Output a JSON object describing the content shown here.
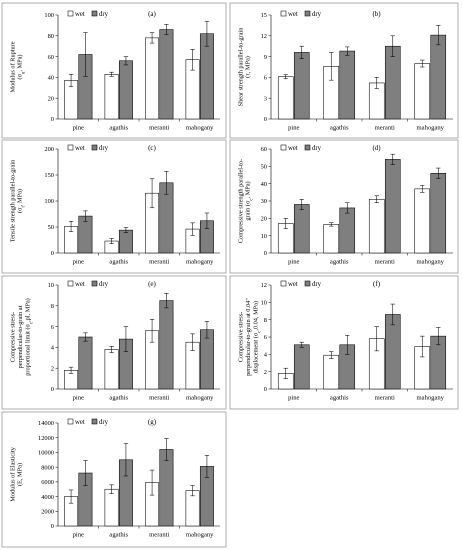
{
  "legend": {
    "wet": "wet",
    "dry": "dry"
  },
  "colors": {
    "wet": "#ffffff",
    "dry": "#7f7f7f",
    "edge": "#000000"
  },
  "chart_data": [
    {
      "panel": "(a)",
      "type": "bar",
      "ylabel_lines": [
        "Modulus of Rupture",
        "(σ_u, MPa)"
      ],
      "categories": [
        "pine",
        "agathis",
        "meranti",
        "mahogany"
      ],
      "ylim": [
        0,
        100
      ],
      "yticks": [
        0,
        20,
        40,
        60,
        80,
        100
      ],
      "series": [
        {
          "name": "wet",
          "values": [
            37,
            43,
            78,
            57
          ],
          "errors": [
            6,
            2,
            5,
            10
          ]
        },
        {
          "name": "dry",
          "values": [
            62,
            56,
            86,
            82
          ],
          "errors": [
            21,
            4,
            5,
            12
          ]
        }
      ]
    },
    {
      "panel": "(b)",
      "type": "bar",
      "ylabel_lines": [
        "Shear strength parallel-to-grain",
        "(τ, MPa)"
      ],
      "categories": [
        "pine",
        "agathis",
        "meranti",
        "mahogany"
      ],
      "ylim": [
        0,
        15
      ],
      "yticks": [
        0,
        3,
        6,
        9,
        12,
        15
      ],
      "series": [
        {
          "name": "wet",
          "values": [
            6.1,
            7.6,
            5.2,
            8.0
          ],
          "errors": [
            0.3,
            2.0,
            0.8,
            0.5
          ]
        },
        {
          "name": "dry",
          "values": [
            9.6,
            9.8,
            10.5,
            12.1
          ],
          "errors": [
            0.9,
            0.6,
            1.5,
            1.4
          ]
        }
      ]
    },
    {
      "panel": "(c)",
      "type": "bar",
      "ylabel_lines": [
        "Tensile strength parallel-to-grain",
        "(σ_t, MPa)"
      ],
      "categories": [
        "pine",
        "agathis",
        "meranti",
        "mahogany"
      ],
      "ylim": [
        0,
        200
      ],
      "yticks": [
        0,
        50,
        100,
        150,
        200
      ],
      "series": [
        {
          "name": "wet",
          "values": [
            51,
            23,
            115,
            46
          ],
          "errors": [
            10,
            5,
            28,
            12
          ]
        },
        {
          "name": "dry",
          "values": [
            71,
            44,
            135,
            62
          ],
          "errors": [
            10,
            5,
            22,
            15
          ]
        }
      ]
    },
    {
      "panel": "(d)",
      "type": "bar",
      "ylabel_lines": [
        "Compressive strength parallel-to-",
        "grain (σ_c, MPa)"
      ],
      "categories": [
        "pine",
        "agathis",
        "meranti",
        "mahogany"
      ],
      "ylim": [
        0,
        60
      ],
      "yticks": [
        0,
        10,
        20,
        30,
        40,
        50,
        60
      ],
      "series": [
        {
          "name": "wet",
          "values": [
            17,
            16.5,
            31,
            37
          ],
          "errors": [
            3,
            1,
            2,
            2
          ]
        },
        {
          "name": "dry",
          "values": [
            28,
            26,
            54,
            46
          ],
          "errors": [
            3,
            3,
            3,
            3
          ]
        }
      ]
    },
    {
      "panel": "(e)",
      "type": "bar",
      "ylabel_lines": [
        "Compressive stress-",
        "perpendicular-to-grain at",
        "proportional limit (σ_c,pl, MPa)"
      ],
      "categories": [
        "pine",
        "agathis",
        "meranti",
        "mahogany"
      ],
      "ylim": [
        0,
        10
      ],
      "yticks": [
        0,
        2,
        4,
        6,
        8,
        10
      ],
      "series": [
        {
          "name": "wet",
          "values": [
            1.8,
            3.8,
            5.6,
            4.5
          ],
          "errors": [
            0.3,
            0.3,
            1.1,
            0.8
          ]
        },
        {
          "name": "dry",
          "values": [
            5.0,
            4.8,
            8.5,
            5.7
          ],
          "errors": [
            0.4,
            1.2,
            0.7,
            0.8
          ]
        }
      ]
    },
    {
      "panel": "(f)",
      "type": "bar",
      "ylabel_lines": [
        "Compressive stress-",
        "perpendicular-to-grain at 0.04\"",
        "displacement (σ_c,0.04, MPa)"
      ],
      "categories": [
        "pine",
        "agathis",
        "meranti",
        "mahogany"
      ],
      "ylim": [
        0,
        12
      ],
      "yticks": [
        0,
        2,
        4,
        6,
        8,
        10,
        12
      ],
      "series": [
        {
          "name": "wet",
          "values": [
            1.8,
            3.9,
            5.8,
            4.9
          ],
          "errors": [
            0.6,
            0.4,
            1.4,
            1.2
          ]
        },
        {
          "name": "dry",
          "values": [
            5.1,
            5.1,
            8.6,
            6.1
          ],
          "errors": [
            0.3,
            1.1,
            1.2,
            1.0
          ]
        }
      ]
    },
    {
      "panel": "(g)",
      "type": "bar",
      "ylabel_lines": [
        "Modulus of Elasticity",
        "(E, MPa)"
      ],
      "categories": [
        "pine",
        "agathis",
        "meranti",
        "mahogany"
      ],
      "ylim": [
        0,
        14000
      ],
      "yticks": [
        0,
        2000,
        4000,
        6000,
        8000,
        10000,
        12000,
        14000
      ],
      "series": [
        {
          "name": "wet",
          "values": [
            4000,
            5000,
            5900,
            4800
          ],
          "errors": [
            900,
            600,
            1700,
            700
          ]
        },
        {
          "name": "dry",
          "values": [
            7200,
            9000,
            10400,
            8100
          ],
          "errors": [
            1700,
            2200,
            1500,
            1500
          ]
        }
      ]
    }
  ]
}
